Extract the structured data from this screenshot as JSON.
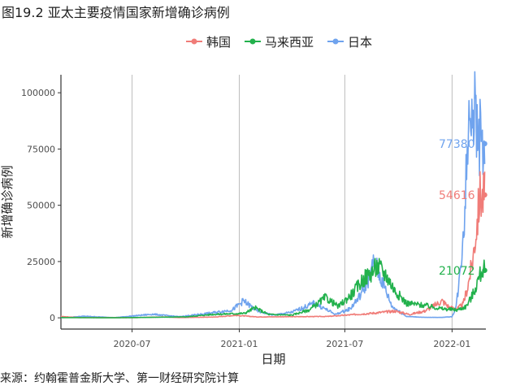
{
  "figure_title": "图19.2 亚太主要疫情国家新增确诊病例",
  "source_note": "来源：约翰霍普金斯大学、第一财经研究院计算",
  "chart_data": {
    "type": "line",
    "xlabel": "日期",
    "ylabel": "新增确诊病例",
    "x_ticks": [
      "2020-07",
      "2021-01",
      "2021-07",
      "2022-01"
    ],
    "y_ticks": [
      "0",
      "25000",
      "50000",
      "75000",
      "100000"
    ],
    "ylim": [
      -5000,
      108000
    ],
    "xlim": [
      "2020-03-01",
      "2022-02-28"
    ],
    "grid": "vertical major gridlines",
    "legend_position": "top",
    "series": [
      {
        "name": "韩国",
        "color": "#F07C78",
        "x": [
          "2020-03-01",
          "2020-04-01",
          "2020-07-01",
          "2020-08-27",
          "2020-09-20",
          "2020-11-20",
          "2020-12-25",
          "2021-02-01",
          "2021-04-01",
          "2021-06-01",
          "2021-07-15",
          "2021-08-15",
          "2021-09-25",
          "2021-10-20",
          "2021-11-15",
          "2021-12-15",
          "2021-12-28",
          "2022-01-10",
          "2022-01-20",
          "2022-01-28",
          "2022-02-05",
          "2022-02-12",
          "2022-02-18",
          "2022-02-22",
          "2022-02-26"
        ],
        "values": [
          600,
          100,
          50,
          400,
          100,
          350,
          1100,
          400,
          500,
          600,
          1400,
          2000,
          3000,
          1500,
          3000,
          7500,
          4500,
          4000,
          6000,
          14000,
          25000,
          40000,
          55000,
          53000,
          54616
        ]
      },
      {
        "name": "马来西亚",
        "color": "#22B14C",
        "x": [
          "2020-03-01",
          "2020-06-01",
          "2020-10-01",
          "2020-11-15",
          "2021-01-10",
          "2021-01-28",
          "2021-02-20",
          "2021-04-01",
          "2021-05-01",
          "2021-05-29",
          "2021-06-20",
          "2021-07-15",
          "2021-08-01",
          "2021-08-15",
          "2021-08-26",
          "2021-09-10",
          "2021-09-25",
          "2021-10-15",
          "2021-11-15",
          "2021-12-15",
          "2022-01-10",
          "2022-01-25",
          "2022-02-05",
          "2022-02-15",
          "2022-02-22",
          "2022-02-26"
        ],
        "values": [
          100,
          20,
          400,
          1500,
          2000,
          4500,
          1500,
          1200,
          3500,
          9000,
          5000,
          11000,
          17000,
          20000,
          23000,
          19000,
          12000,
          6500,
          5500,
          4000,
          3500,
          5000,
          10000,
          17000,
          21500,
          21072
        ]
      },
      {
        "name": "日本",
        "color": "#6FA3EE",
        "x": [
          "2020-03-01",
          "2020-04-10",
          "2020-06-01",
          "2020-08-05",
          "2020-09-20",
          "2020-11-15",
          "2020-12-20",
          "2021-01-08",
          "2021-02-01",
          "2021-03-01",
          "2021-04-01",
          "2021-05-10",
          "2021-06-15",
          "2021-07-10",
          "2021-07-25",
          "2021-08-05",
          "2021-08-15",
          "2021-08-20",
          "2021-08-25",
          "2021-09-05",
          "2021-09-20",
          "2021-10-15",
          "2021-11-15",
          "2021-12-15",
          "2022-01-01",
          "2022-01-08",
          "2022-01-15",
          "2022-01-22",
          "2022-01-28",
          "2022-02-03",
          "2022-02-07",
          "2022-02-12",
          "2022-02-18",
          "2022-02-26"
        ],
        "values": [
          50,
          700,
          100,
          1600,
          500,
          2200,
          3500,
          7500,
          3000,
          1200,
          2500,
          6500,
          1500,
          4000,
          9000,
          14000,
          20000,
          25000,
          22000,
          15000,
          5000,
          600,
          200,
          200,
          500,
          5000,
          20000,
          45000,
          80000,
          103000,
          95000,
          85000,
          80000,
          77380
        ]
      }
    ],
    "end_labels": [
      {
        "series": "日本",
        "text": "77380"
      },
      {
        "series": "韩国",
        "text": "54616"
      },
      {
        "series": "马来西亚",
        "text": "21072"
      }
    ]
  }
}
